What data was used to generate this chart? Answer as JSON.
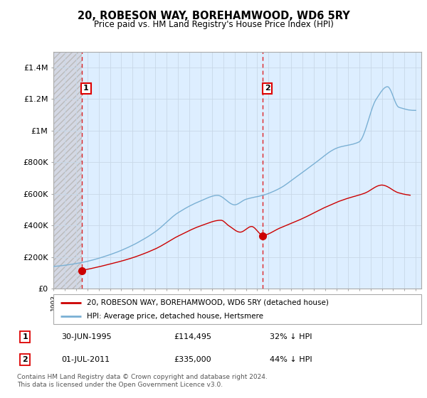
{
  "title": "20, ROBESON WAY, BOREHAMWOOD, WD6 5RY",
  "subtitle": "Price paid vs. HM Land Registry's House Price Index (HPI)",
  "legend_line1": "20, ROBESON WAY, BOREHAMWOOD, WD6 5RY (detached house)",
  "legend_line2": "HPI: Average price, detached house, Hertsmere",
  "footer": "Contains HM Land Registry data © Crown copyright and database right 2024.\nThis data is licensed under the Open Government Licence v3.0.",
  "annotation1_date": "30-JUN-1995",
  "annotation1_price": "£114,495",
  "annotation1_hpi": "32% ↓ HPI",
  "annotation1_year": 1995.5,
  "annotation1_value": 114495,
  "annotation2_date": "01-JUL-2011",
  "annotation2_price": "£335,000",
  "annotation2_hpi": "44% ↓ HPI",
  "annotation2_year": 2011.5,
  "annotation2_value": 335000,
  "red_line_color": "#cc0000",
  "blue_line_color": "#7ab0d4",
  "hatch_edgecolor": "#bbbbbb",
  "grid_color": "#c8d8e8",
  "bg_color": "#ddeeff",
  "hatch_bg_color": "#d8d8e8",
  "ylim": [
    0,
    1500000
  ],
  "xlim_start": 1993.0,
  "xlim_end": 2025.5,
  "hatch_end_year": 1995.5,
  "yticks": [
    0,
    200000,
    400000,
    600000,
    800000,
    1000000,
    1200000,
    1400000
  ],
  "ytick_labels": [
    "£0",
    "£200K",
    "£400K",
    "£600K",
    "£800K",
    "£1M",
    "£1.2M",
    "£1.4M"
  ],
  "hpi_anchors_year": [
    1993.0,
    1995.5,
    1998.0,
    2000.0,
    2002.0,
    2004.0,
    2006.0,
    2007.5,
    2009.0,
    2010.0,
    2011.5,
    2013.0,
    2014.5,
    2016.0,
    2018.0,
    2020.0,
    2021.5,
    2022.5,
    2023.5,
    2025.0
  ],
  "hpi_anchors_val": [
    140000,
    165000,
    215000,
    275000,
    360000,
    480000,
    555000,
    590000,
    530000,
    565000,
    590000,
    635000,
    710000,
    790000,
    890000,
    930000,
    1200000,
    1280000,
    1150000,
    1130000
  ],
  "red_anchors_year": [
    1995.5,
    1998.0,
    2000.0,
    2002.0,
    2004.0,
    2006.0,
    2007.8,
    2008.5,
    2009.5,
    2010.5,
    2011.5,
    2013.0,
    2015.0,
    2017.0,
    2018.5,
    2020.5,
    2022.0,
    2023.5,
    2024.5
  ],
  "red_anchors_val": [
    114495,
    155000,
    195000,
    250000,
    330000,
    395000,
    430000,
    395000,
    355000,
    390000,
    335000,
    380000,
    440000,
    510000,
    555000,
    600000,
    650000,
    600000,
    585000
  ]
}
